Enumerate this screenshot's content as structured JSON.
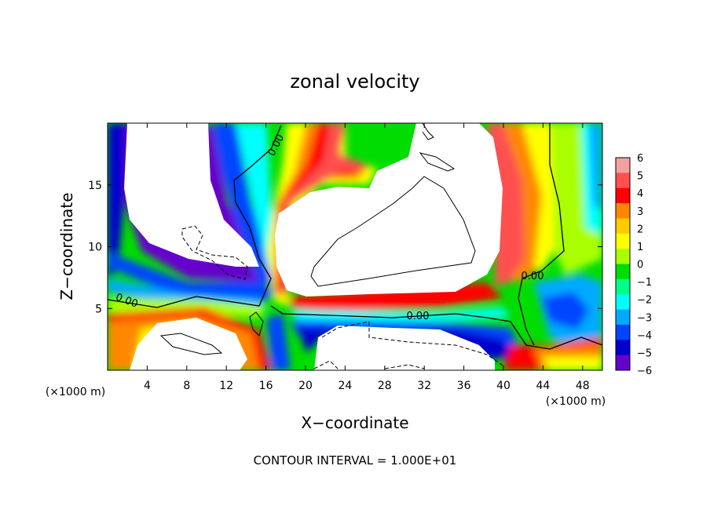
{
  "chart_data": {
    "type": "heatmap",
    "title": "zonal velocity",
    "xlabel": "X−coordinate",
    "ylabel": "Z−coordinate",
    "x_unit_left": "(×1000 m)",
    "x_unit_right": "(×1000 m)",
    "xlim": [
      0,
      50
    ],
    "ylim": [
      0,
      20
    ],
    "x_ticks": [
      4,
      8,
      12,
      16,
      20,
      24,
      28,
      32,
      36,
      40,
      44,
      48
    ],
    "y_ticks": [
      5,
      10,
      15
    ],
    "colorbar": {
      "levels": [
        6,
        5,
        4,
        3,
        2,
        1,
        0,
        -1,
        -2,
        -3,
        -4,
        -5,
        -6
      ],
      "labels": [
        "6",
        "5",
        "4",
        "3",
        "2",
        "1",
        "0",
        "−1",
        "−2",
        "−3",
        "−4",
        "−5",
        "−6"
      ],
      "colors": [
        "#f4a0a0",
        "#ff5050",
        "#ff0000",
        "#ff8800",
        "#ffcc00",
        "#ffff00",
        "#aaff00",
        "#00dd00",
        "#00ff88",
        "#00ffff",
        "#00aaff",
        "#0044ff",
        "#0000cc",
        "#6600cc"
      ]
    },
    "contour_labels": [
      "0.00",
      "0.00",
      "0.00",
      "0.00"
    ],
    "footnote": "CONTOUR INTERVAL = 1.000E+01",
    "grid": false,
    "legend": "colorbar right"
  }
}
